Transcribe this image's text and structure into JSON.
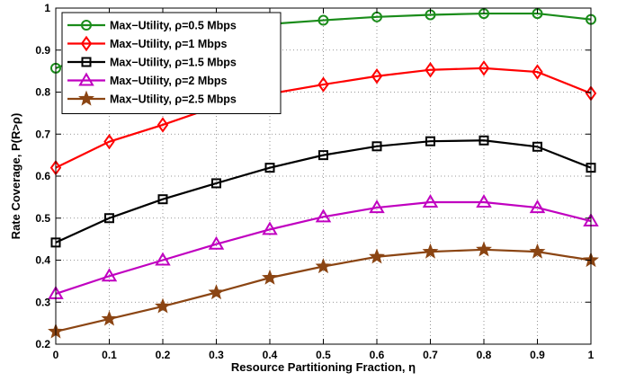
{
  "chart_data": {
    "type": "line",
    "xlabel": "Resource Partitioning Fraction, η",
    "ylabel": "Rate Coverage, P(R>ρ)",
    "xlim": [
      0,
      1
    ],
    "ylim": [
      0.2,
      1
    ],
    "xticks": [
      0,
      0.1,
      0.2,
      0.3,
      0.4,
      0.5,
      0.6,
      0.7,
      0.8,
      0.9,
      1
    ],
    "xtick_labels": [
      "0",
      "0.1",
      "0.2",
      "0.3",
      "0.4",
      "0.5",
      "0.6",
      "0.7",
      "0.8",
      "0.9",
      "1"
    ],
    "yticks": [
      0.2,
      0.3,
      0.4,
      0.5,
      0.6,
      0.7,
      0.8,
      0.9,
      1
    ],
    "ytick_labels": [
      "0.2",
      "0.3",
      "0.4",
      "0.5",
      "0.6",
      "0.7",
      "0.8",
      "0.9",
      "1"
    ],
    "grid": true,
    "legend_position": "top-left",
    "x": [
      0,
      0.1,
      0.2,
      0.3,
      0.4,
      0.5,
      0.6,
      0.7,
      0.8,
      0.9,
      1
    ],
    "series": [
      {
        "name": "Max−Utility, ρ=0.5 Mbps",
        "color": "#1a8c1a",
        "marker": "circle",
        "values": [
          0.857,
          0.905,
          0.93,
          0.95,
          0.962,
          0.971,
          0.979,
          0.984,
          0.987,
          0.987,
          0.973
        ]
      },
      {
        "name": "Max−Utility, ρ=1 Mbps",
        "color": "#ff0000",
        "marker": "diamond",
        "values": [
          0.62,
          0.682,
          0.722,
          0.766,
          0.796,
          0.818,
          0.838,
          0.853,
          0.857,
          0.848,
          0.797
        ]
      },
      {
        "name": "Max−Utility, ρ=1.5 Mbps",
        "color": "#000000",
        "marker": "square",
        "values": [
          0.442,
          0.5,
          0.545,
          0.583,
          0.62,
          0.65,
          0.671,
          0.683,
          0.685,
          0.67,
          0.62
        ]
      },
      {
        "name": "Max−Utility, ρ=2 Mbps",
        "color": "#c000c0",
        "marker": "triangle",
        "values": [
          0.32,
          0.362,
          0.4,
          0.438,
          0.473,
          0.503,
          0.525,
          0.538,
          0.538,
          0.525,
          0.493
        ]
      },
      {
        "name": "Max−Utility, ρ=2.5 Mbps",
        "color": "#8b4513",
        "marker": "star",
        "values": [
          0.23,
          0.26,
          0.29,
          0.323,
          0.358,
          0.385,
          0.408,
          0.42,
          0.425,
          0.42,
          0.4
        ]
      }
    ]
  }
}
